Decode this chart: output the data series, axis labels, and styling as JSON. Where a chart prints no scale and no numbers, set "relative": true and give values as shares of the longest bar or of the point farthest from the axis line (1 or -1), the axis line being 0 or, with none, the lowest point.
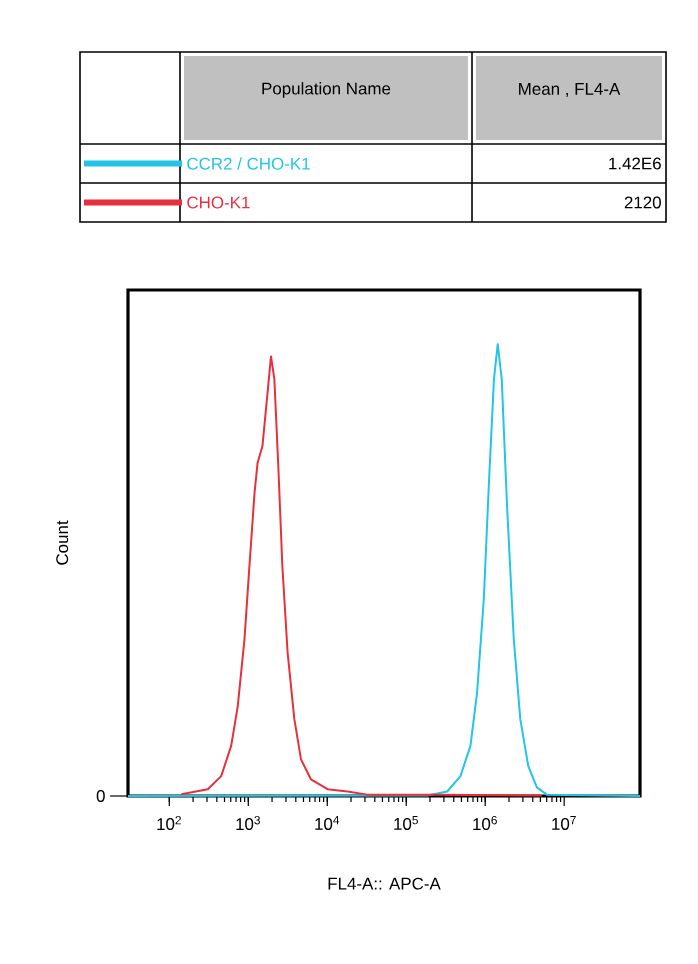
{
  "chart_data": {
    "type": "line",
    "xlabel": "FL4-A:: APC-A",
    "ylabel": "Count",
    "legend": "top",
    "legend_title": "Population Name",
    "annotations": [
      "Mean , FL4-A",
      "1.42E6",
      "2120",
      "0"
    ],
    "log": "x",
    "relative": true,
    "marker": "none",
    "line_style": "solid",
    "xlim": [
      30,
      91200000
    ],
    "xticks": [
      {
        "value": 100,
        "label": "10$^{2}$"
      },
      {
        "value": 1000,
        "label": "10$^{3}$"
      },
      {
        "value": 10000,
        "label": "10$^{4}$"
      },
      {
        "value": 100000,
        "label": "10$^{5}$"
      },
      {
        "value": 1000000,
        "label": "10$^{6}$"
      },
      {
        "value": 10000000,
        "label": "10$^{7}$"
      }
    ],
    "series": [
      {
        "name": "CCR2 / CHO-K1",
        "color": "#22c4e8",
        "x": [
          30,
          184000,
          330000,
          486000,
          650000,
          789000,
          959000,
          1120000,
          1290000,
          1440000,
          1620000,
          1890000,
          2300000,
          2780000,
          3510000,
          4510000,
          6030000,
          91200000
        ],
        "values": [
          0,
          0.001,
          0.01,
          0.044,
          0.111,
          0.229,
          0.435,
          0.701,
          0.922,
          1,
          0.922,
          0.642,
          0.347,
          0.17,
          0.066,
          0.019,
          0.003,
          0
        ]
      },
      {
        "name": "CHO-K1",
        "color": "#e8303c",
        "x": [
          142,
          307,
          454,
          607,
          736,
          895,
          1020,
          1200,
          1310,
          1510,
          1690,
          1940,
          2140,
          2400,
          2700,
          3150,
          3830,
          4650,
          6210,
          10100,
          18000,
          32200,
          224000,
          5190000
        ],
        "values": [
          0.004,
          0.015,
          0.044,
          0.111,
          0.199,
          0.347,
          0.494,
          0.671,
          0.737,
          0.774,
          0.863,
          0.973,
          0.922,
          0.73,
          0.509,
          0.317,
          0.17,
          0.081,
          0.037,
          0.015,
          0.01,
          0.003,
          0.003,
          0.001
        ]
      }
    ]
  }
}
